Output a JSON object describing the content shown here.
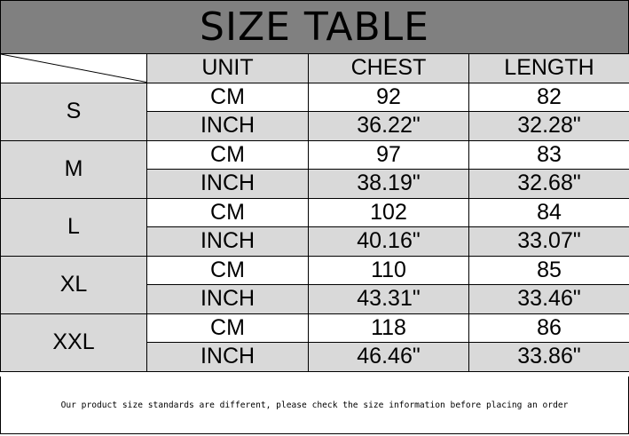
{
  "title": "SIZE TABLE",
  "headers": [
    "UNIT",
    "CHEST",
    "LENGTH"
  ],
  "rows": [
    {
      "size": "S",
      "cm": {
        "unit": "CM",
        "chest": "92",
        "length": "82"
      },
      "inch": {
        "unit": "INCH",
        "chest": "36.22\"",
        "length": "32.28\""
      }
    },
    {
      "size": "M",
      "cm": {
        "unit": "CM",
        "chest": "97",
        "length": "83"
      },
      "inch": {
        "unit": "INCH",
        "chest": "38.19\"",
        "length": "32.68\""
      }
    },
    {
      "size": "L",
      "cm": {
        "unit": "CM",
        "chest": "102",
        "length": "84"
      },
      "inch": {
        "unit": "INCH",
        "chest": "40.16\"",
        "length": "33.07\""
      }
    },
    {
      "size": "XL",
      "cm": {
        "unit": "CM",
        "chest": "110",
        "length": "85"
      },
      "inch": {
        "unit": "INCH",
        "chest": "43.31\"",
        "length": "33.46\""
      }
    },
    {
      "size": "XXL",
      "cm": {
        "unit": "CM",
        "chest": "118",
        "length": "86"
      },
      "inch": {
        "unit": "INCH",
        "chest": "46.46\"",
        "length": "33.86\""
      }
    }
  ],
  "footer": "Our product size standards are different, please check the size information before placing an order",
  "colors": {
    "title_bg": "#808080",
    "shaded": "#d9d9d9"
  }
}
